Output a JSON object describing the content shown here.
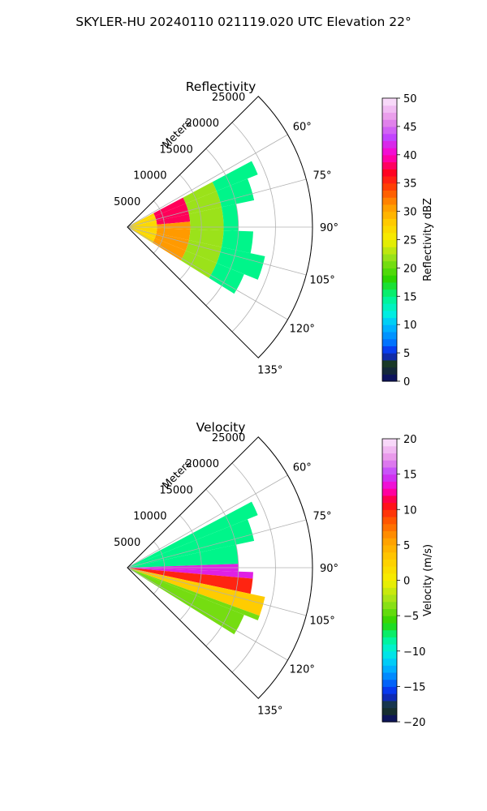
{
  "figure": {
    "suptitle": "SKYLER-HU  20240110  021119.020 UTC Elevation 22°"
  },
  "chart_data": [
    {
      "type": "heatmap",
      "projection": "polar-sector",
      "title": "Reflectivity",
      "radial_axis_label": "Meters",
      "radial_ticks": [
        5000,
        10000,
        15000,
        20000,
        25000
      ],
      "radial_tick_labels": [
        "5000",
        "10000",
        "15000",
        "20000",
        "25000"
      ],
      "rmax": 25000,
      "azimuth_range_deg": [
        45,
        135
      ],
      "azimuth_ticks": [
        60,
        75,
        90,
        105,
        120,
        135
      ],
      "azimuth_tick_labels": [
        "60°",
        "75°",
        "90°",
        "105°",
        "120°",
        "135°"
      ],
      "grid": true,
      "colorbar": {
        "label": "Reflectivity dBZ",
        "vmin": 0,
        "vmax": 50,
        "ticks": [
          0,
          5,
          10,
          15,
          20,
          25,
          30,
          35,
          40,
          45,
          50
        ],
        "tick_labels": [
          "0",
          "5",
          "10",
          "15",
          "20",
          "25",
          "30",
          "35",
          "40",
          "45",
          "50"
        ],
        "colors": [
          {
            "v": 0,
            "c": "#0a0a6e"
          },
          {
            "v": 3,
            "c": "#1a3a1a"
          },
          {
            "v": 5,
            "c": "#0b24e8"
          },
          {
            "v": 7,
            "c": "#0078ff"
          },
          {
            "v": 10,
            "c": "#00c0ff"
          },
          {
            "v": 12,
            "c": "#00f0e0"
          },
          {
            "v": 15,
            "c": "#00f58a"
          },
          {
            "v": 18,
            "c": "#28d400"
          },
          {
            "v": 22,
            "c": "#9be21a"
          },
          {
            "v": 25,
            "c": "#f5f000"
          },
          {
            "v": 28,
            "c": "#ffcc00"
          },
          {
            "v": 31,
            "c": "#ff9a00"
          },
          {
            "v": 34,
            "c": "#ff4800"
          },
          {
            "v": 37,
            "c": "#ff0022"
          },
          {
            "v": 40,
            "c": "#ff00c8"
          },
          {
            "v": 43,
            "c": "#c040ff"
          },
          {
            "v": 46,
            "c": "#e58ae8"
          },
          {
            "v": 50,
            "c": "#fce8fc"
          }
        ]
      },
      "echo_sectors": [
        {
          "az_from": 62,
          "az_to": 68,
          "r_max": 19000
        },
        {
          "az_from": 68,
          "az_to": 78,
          "r_max": 17500
        },
        {
          "az_from": 78,
          "az_to": 92,
          "r_max": 15000
        },
        {
          "az_from": 92,
          "az_to": 102,
          "r_max": 17000
        },
        {
          "az_from": 102,
          "az_to": 112,
          "r_max": 19000
        },
        {
          "az_from": 112,
          "az_to": 122,
          "r_max": 17000
        }
      ],
      "echo_bands": [
        {
          "az_from": 62,
          "az_to": 122,
          "r_from": 0,
          "r_to": 4000,
          "value": 27
        },
        {
          "az_from": 62,
          "az_to": 85,
          "r_from": 4000,
          "r_to": 8500,
          "value": 38
        },
        {
          "az_from": 85,
          "az_to": 122,
          "r_from": 4000,
          "r_to": 8500,
          "value": 31
        },
        {
          "az_from": 62,
          "az_to": 122,
          "r_from": 8500,
          "r_to": 13000,
          "value": 22
        },
        {
          "az_from": 62,
          "az_to": 122,
          "r_from": 13000,
          "r_to": 19000,
          "value": 15
        }
      ]
    },
    {
      "type": "heatmap",
      "projection": "polar-sector",
      "title": "Velocity",
      "radial_axis_label": "Meters",
      "radial_ticks": [
        5000,
        10000,
        15000,
        20000,
        25000
      ],
      "radial_tick_labels": [
        "5000",
        "10000",
        "15000",
        "20000",
        "25000"
      ],
      "rmax": 25000,
      "azimuth_range_deg": [
        45,
        135
      ],
      "azimuth_ticks": [
        60,
        75,
        90,
        105,
        120,
        135
      ],
      "azimuth_tick_labels": [
        "60°",
        "75°",
        "90°",
        "105°",
        "120°",
        "135°"
      ],
      "grid": true,
      "colorbar": {
        "label": "Velocity (m/s)",
        "vmin": -20,
        "vmax": 20,
        "ticks": [
          -20,
          -15,
          -10,
          -5,
          0,
          5,
          10,
          15,
          20
        ],
        "tick_labels": [
          "−20",
          "−15",
          "−10",
          "−5",
          "0",
          "5",
          "10",
          "15",
          "20"
        ],
        "colors": [
          {
            "v": -20,
            "c": "#0a0a6e"
          },
          {
            "v": -18,
            "c": "#1a3a1a"
          },
          {
            "v": -16,
            "c": "#0b24e8"
          },
          {
            "v": -14,
            "c": "#0078ff"
          },
          {
            "v": -12,
            "c": "#00c0ff"
          },
          {
            "v": -10,
            "c": "#00f0e0"
          },
          {
            "v": -8,
            "c": "#00f58a"
          },
          {
            "v": -6,
            "c": "#28d400"
          },
          {
            "v": -3,
            "c": "#9be21a"
          },
          {
            "v": 0,
            "c": "#f5f000"
          },
          {
            "v": 3,
            "c": "#ffcc00"
          },
          {
            "v": 6,
            "c": "#ff9a00"
          },
          {
            "v": 9,
            "c": "#ff4800"
          },
          {
            "v": 11,
            "c": "#ff0022"
          },
          {
            "v": 13,
            "c": "#ff00c8"
          },
          {
            "v": 15,
            "c": "#c040ff"
          },
          {
            "v": 17,
            "c": "#e58ae8"
          },
          {
            "v": 20,
            "c": "#fce8fc"
          }
        ]
      },
      "echo_sectors": [
        {
          "az_from": 62,
          "az_to": 68,
          "r_max": 19000
        },
        {
          "az_from": 68,
          "az_to": 78,
          "r_max": 17500
        },
        {
          "az_from": 78,
          "az_to": 92,
          "r_max": 15000
        },
        {
          "az_from": 92,
          "az_to": 102,
          "r_max": 17000
        },
        {
          "az_from": 102,
          "az_to": 112,
          "r_max": 19000
        },
        {
          "az_from": 112,
          "az_to": 122,
          "r_max": 17000
        }
      ],
      "echo_bands": [
        {
          "az_from": 62,
          "az_to": 88,
          "r_from": 0,
          "r_to": 19000,
          "value": -8
        },
        {
          "az_from": 88,
          "az_to": 95,
          "r_from": 0,
          "r_to": 19000,
          "value": 14
        },
        {
          "az_from": 95,
          "az_to": 102,
          "r_from": 0,
          "r_to": 19000,
          "value": 10
        },
        {
          "az_from": 102,
          "az_to": 110,
          "r_from": 0,
          "r_to": 19000,
          "value": 3
        },
        {
          "az_from": 110,
          "az_to": 122,
          "r_from": 0,
          "r_to": 19000,
          "value": -4
        }
      ]
    }
  ]
}
